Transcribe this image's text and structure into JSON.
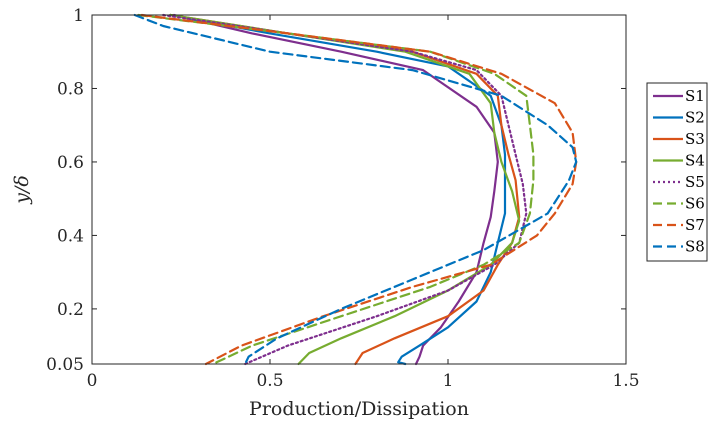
{
  "chart_data": {
    "type": "line",
    "title": "",
    "xlabel": "Production/Dissipation",
    "ylabel": "y/δ",
    "xlim": [
      0,
      1.5
    ],
    "ylim": [
      0.05,
      1
    ],
    "xticks": [
      0,
      0.5,
      1,
      1.5
    ],
    "xtick_labels": [
      "0",
      "0.5",
      "1",
      "1.5"
    ],
    "yticks": [
      0.05,
      0.2,
      0.4,
      0.6,
      0.8,
      1
    ],
    "ytick_labels": [
      "0.05",
      "0.2",
      "0.4",
      "0.6",
      "0.8",
      "1"
    ],
    "grid": false,
    "legend_position": "right",
    "series": [
      {
        "name": "S1",
        "color": "#7E2F8E",
        "dash": "solid",
        "x": [
          0.23,
          0.45,
          0.7,
          0.93,
          1.08,
          1.13,
          1.14,
          1.13,
          1.12,
          1.1,
          1.08,
          1.03,
          0.98,
          0.93,
          0.92,
          0.91
        ],
        "y": [
          1.0,
          0.95,
          0.9,
          0.85,
          0.75,
          0.68,
          0.6,
          0.52,
          0.45,
          0.38,
          0.3,
          0.22,
          0.15,
          0.1,
          0.07,
          0.05
        ]
      },
      {
        "name": "S2",
        "color": "#0072BD",
        "dash": "solid",
        "x": [
          0.22,
          0.5,
          0.8,
          1.0,
          1.12,
          1.15,
          1.16,
          1.16,
          1.16,
          1.14,
          1.12,
          1.08,
          1.0,
          0.92,
          0.87,
          0.86,
          0.88
        ],
        "y": [
          1.0,
          0.95,
          0.9,
          0.86,
          0.78,
          0.7,
          0.62,
          0.54,
          0.46,
          0.38,
          0.3,
          0.22,
          0.15,
          0.1,
          0.07,
          0.055,
          0.05
        ]
      },
      {
        "name": "S3",
        "color": "#D95319",
        "dash": "solid",
        "x": [
          0.22,
          0.55,
          0.9,
          1.08,
          1.14,
          1.15,
          1.17,
          1.19,
          1.2,
          1.18,
          1.14,
          1.1,
          1.0,
          0.85,
          0.76,
          0.74
        ],
        "y": [
          1.0,
          0.95,
          0.9,
          0.84,
          0.78,
          0.7,
          0.62,
          0.55,
          0.45,
          0.38,
          0.32,
          0.25,
          0.18,
          0.12,
          0.08,
          0.05
        ]
      },
      {
        "name": "S4",
        "color": "#77AC30",
        "dash": "solid",
        "x": [
          0.22,
          0.55,
          0.88,
          1.06,
          1.12,
          1.13,
          1.15,
          1.18,
          1.2,
          1.18,
          1.12,
          1.0,
          0.85,
          0.7,
          0.61,
          0.58
        ],
        "y": [
          1.0,
          0.95,
          0.9,
          0.84,
          0.76,
          0.68,
          0.6,
          0.52,
          0.44,
          0.38,
          0.32,
          0.25,
          0.18,
          0.12,
          0.08,
          0.05
        ]
      },
      {
        "name": "S5",
        "color": "#7E2F8E",
        "dash": "dotted",
        "x": [
          0.2,
          0.55,
          0.9,
          1.08,
          1.15,
          1.17,
          1.19,
          1.21,
          1.22,
          1.2,
          1.13,
          1.0,
          0.8,
          0.55,
          0.43
        ],
        "y": [
          1.0,
          0.95,
          0.9,
          0.85,
          0.78,
          0.7,
          0.62,
          0.54,
          0.46,
          0.38,
          0.32,
          0.25,
          0.18,
          0.1,
          0.05
        ]
      },
      {
        "name": "S6",
        "color": "#77AC30",
        "dash": "dashed",
        "x": [
          0.13,
          0.55,
          0.95,
          1.13,
          1.22,
          1.23,
          1.24,
          1.24,
          1.23,
          1.2,
          1.1,
          0.95,
          0.7,
          0.45,
          0.34
        ],
        "y": [
          1.0,
          0.95,
          0.9,
          0.84,
          0.78,
          0.7,
          0.62,
          0.55,
          0.46,
          0.38,
          0.32,
          0.26,
          0.18,
          0.1,
          0.05
        ]
      },
      {
        "name": "S7",
        "color": "#D95319",
        "dash": "dashed",
        "x": [
          0.14,
          0.55,
          0.95,
          1.15,
          1.3,
          1.35,
          1.36,
          1.35,
          1.3,
          1.25,
          1.12,
          0.9,
          0.65,
          0.42,
          0.32
        ],
        "y": [
          1.0,
          0.95,
          0.9,
          0.84,
          0.76,
          0.68,
          0.6,
          0.54,
          0.46,
          0.4,
          0.32,
          0.26,
          0.18,
          0.1,
          0.05
        ]
      },
      {
        "name": "S8",
        "color": "#0072BD",
        "dash": "dashed",
        "x": [
          0.12,
          0.2,
          0.5,
          0.9,
          1.15,
          1.28,
          1.35,
          1.36,
          1.34,
          1.28,
          1.1,
          0.9,
          0.7,
          0.52,
          0.44,
          0.43
        ],
        "y": [
          1.0,
          0.97,
          0.9,
          0.85,
          0.78,
          0.7,
          0.64,
          0.6,
          0.55,
          0.46,
          0.36,
          0.28,
          0.2,
          0.12,
          0.07,
          0.05
        ]
      }
    ]
  }
}
